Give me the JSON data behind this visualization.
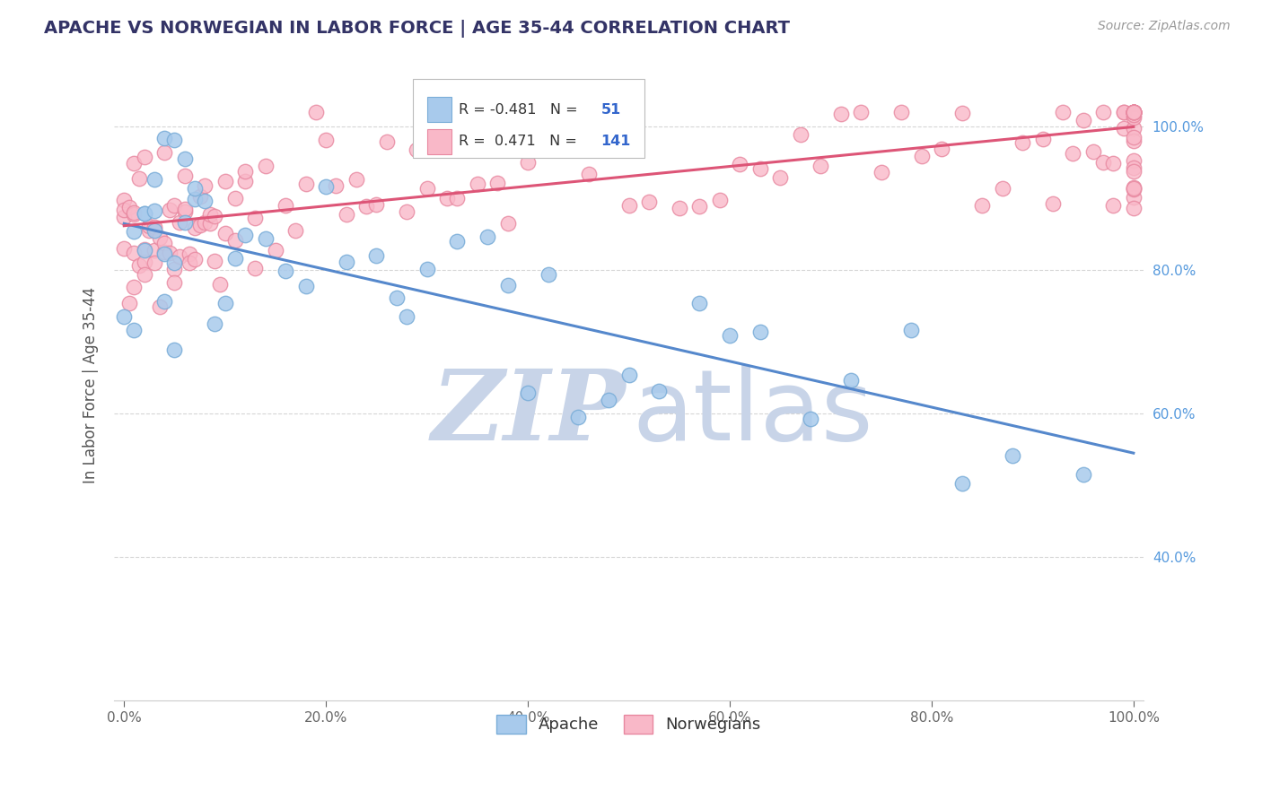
{
  "title": "APACHE VS NORWEGIAN IN LABOR FORCE | AGE 35-44 CORRELATION CHART",
  "source_text": "Source: ZipAtlas.com",
  "ylabel": "In Labor Force | Age 35-44",
  "xlim": [
    -0.01,
    1.01
  ],
  "ylim": [
    0.2,
    1.08
  ],
  "xticks": [
    0.0,
    0.2,
    0.4,
    0.6,
    0.8,
    1.0
  ],
  "yticks": [
    0.4,
    0.6,
    0.8,
    1.0
  ],
  "xtick_labels": [
    "0.0%",
    "20.0%",
    "40.0%",
    "60.0%",
    "80.0%",
    "100.0%"
  ],
  "ytick_labels": [
    "40.0%",
    "60.0%",
    "80.0%",
    "100.0%"
  ],
  "legend_apache": "Apache",
  "legend_norwegian": "Norwegians",
  "R_apache": -0.481,
  "N_apache": 51,
  "R_norwegian": 0.471,
  "N_norwegian": 141,
  "apache_color": "#A8CAEC",
  "apache_edge_color": "#7AADD8",
  "norwegian_color": "#F9B8C8",
  "norwegian_edge_color": "#E888A0",
  "trend_apache_color": "#5588CC",
  "trend_norwegian_color": "#DD5577",
  "background_color": "#FFFFFF",
  "grid_color": "#CCCCCC",
  "title_color": "#333366",
  "source_color": "#999999",
  "watermark_zip_color": "#C8D4E8",
  "watermark_atlas_color": "#C8D4E8",
  "apache_trend_x0": 0.0,
  "apache_trend_y0": 0.865,
  "apache_trend_x1": 1.0,
  "apache_trend_y1": 0.545,
  "norwegian_trend_x0": 0.0,
  "norwegian_trend_y0": 0.862,
  "norwegian_trend_x1": 1.0,
  "norwegian_trend_y1": 1.0
}
